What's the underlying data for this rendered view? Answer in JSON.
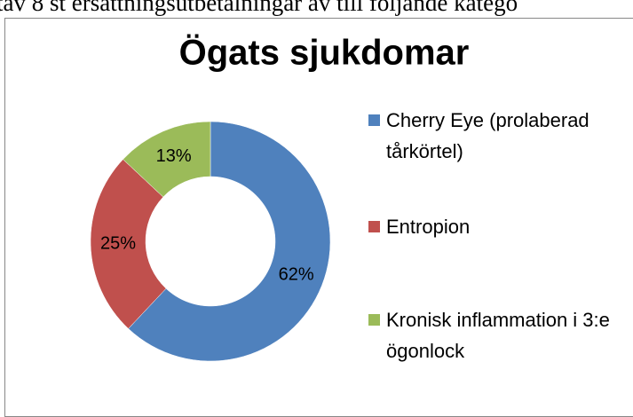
{
  "header": {
    "text": "tav 8 st ersättningsutbetalningar av till följande katego"
  },
  "chart_data": {
    "type": "donut",
    "title": "Ögats sjukdomar",
    "categories": [
      "Cherry Eye (prolaberad tårkörtel)",
      "Entropion",
      "Kronisk inflammation i 3:e ögonlock"
    ],
    "values": [
      62,
      25,
      13
    ],
    "value_labels": [
      "62%",
      "25%",
      "13%"
    ],
    "colors": [
      "#4f81bd",
      "#c0504d",
      "#9bbb59"
    ],
    "legend": "right"
  }
}
